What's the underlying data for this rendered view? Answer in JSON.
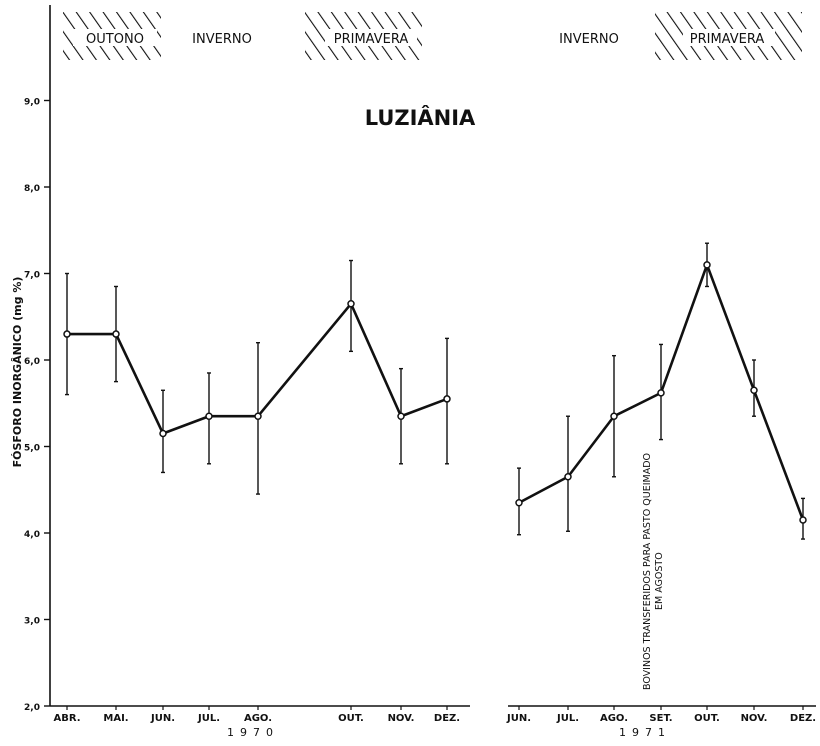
{
  "chart_data": {
    "type": "line",
    "title": "LUZIÂNIA",
    "ylabel": "FÓSFORO INORGÂNICO (mg %)",
    "ylim": [
      2.0,
      9.3
    ],
    "yticks": [
      "2,0",
      "3,0",
      "4,0",
      "5,0",
      "6,0",
      "7,0",
      "8,0",
      "9,0"
    ],
    "grid": false,
    "seasons_1970": [
      "OUTONO",
      "INVERNO",
      "PRIMAVERA"
    ],
    "seasons_1971": [
      "INVERNO",
      "PRIMAVERA"
    ],
    "annotation": [
      "BOVINOS TRANSFERIDOS PARA PASTO QUEIMADO",
      "EM AGOSTO"
    ],
    "panels": [
      {
        "year": "1970",
        "categories": [
          "ABR.",
          "MAI.",
          "JUN.",
          "JUL.",
          "AGO.",
          "OUT.",
          "NOV.",
          "DEZ."
        ],
        "values": [
          6.3,
          6.3,
          5.15,
          5.35,
          5.35,
          6.65,
          5.35,
          5.55
        ],
        "error_low": [
          5.6,
          5.75,
          4.7,
          4.8,
          4.45,
          6.1,
          4.8,
          4.8
        ],
        "error_high": [
          7.0,
          6.85,
          5.65,
          5.85,
          6.2,
          7.15,
          5.9,
          6.25
        ]
      },
      {
        "year": "1971",
        "categories": [
          "JUN.",
          "JUL.",
          "AGO.",
          "SET.",
          "OUT.",
          "NOV.",
          "DEZ."
        ],
        "values": [
          4.35,
          4.65,
          5.35,
          5.62,
          7.1,
          5.65,
          4.15
        ],
        "error_low": [
          3.98,
          4.02,
          4.65,
          5.08,
          6.85,
          5.35,
          3.93
        ],
        "error_high": [
          4.75,
          5.35,
          6.05,
          6.18,
          7.35,
          6.0,
          4.4
        ]
      }
    ]
  }
}
